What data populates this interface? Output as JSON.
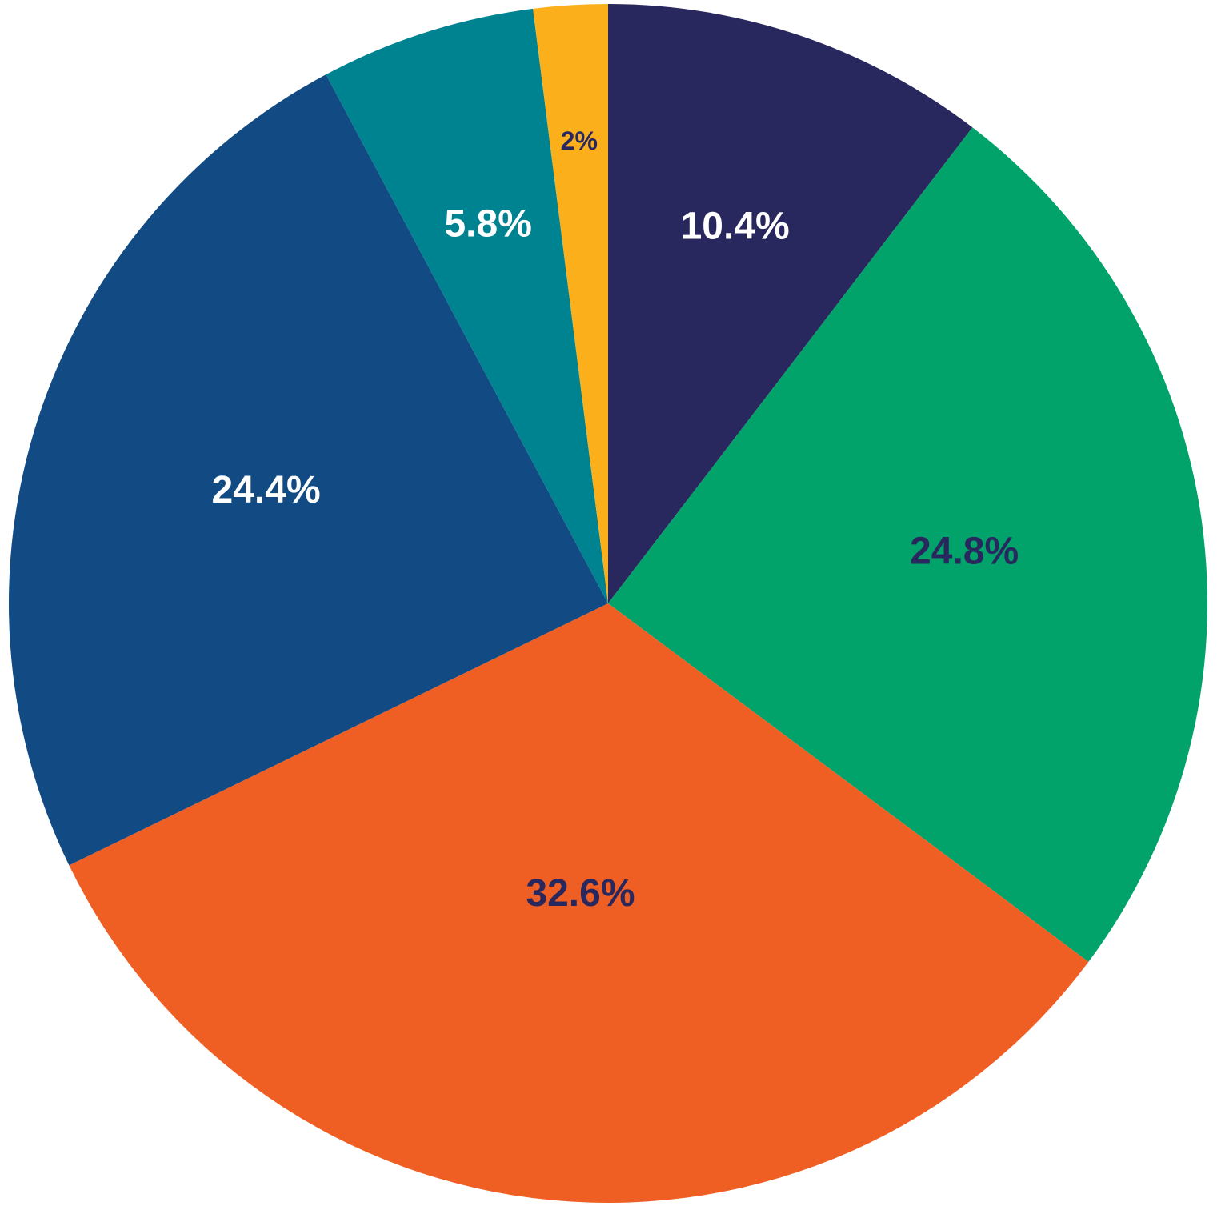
{
  "chart_data": {
    "type": "pie",
    "values": [
      10.4,
      24.8,
      32.6,
      24.4,
      5.8,
      2
    ],
    "value_labels": [
      "10.4%",
      "24.8%",
      "32.6%",
      "24.4%",
      "5.8%",
      "2%"
    ],
    "colors": [
      "#29285e",
      "#02a36b",
      "#ef5f24",
      "#124b83",
      "#008391",
      "#fbb01b"
    ],
    "label_colors": [
      "#ffffff",
      "#29285e",
      "#29285e",
      "#ffffff",
      "#ffffff",
      "#29285e"
    ]
  }
}
